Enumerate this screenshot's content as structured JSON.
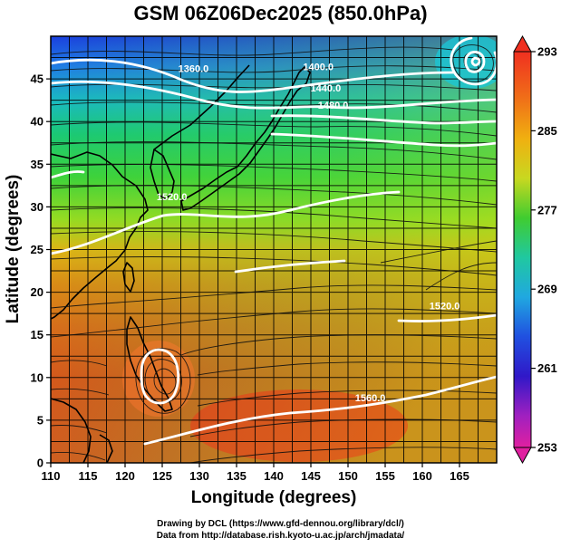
{
  "title": "GSM 06Z06Dec2025 (850.0hPa)",
  "map": {
    "xlabel": "Longitude (degrees)",
    "ylabel": "Latitude  (degrees)",
    "xticks": [
      "110",
      "115",
      "120",
      "125",
      "130",
      "135",
      "140",
      "145",
      "150",
      "155",
      "160",
      "165"
    ],
    "yticks": [
      "0",
      "5",
      "10",
      "15",
      "20",
      "25",
      "30",
      "35",
      "40",
      "45"
    ],
    "xlim": [
      110,
      170
    ],
    "ylim": [
      0,
      50
    ],
    "contour_labels": [
      {
        "text": "1360.0",
        "lon": 129.2,
        "lat": 45.8
      },
      {
        "text": "1400.0",
        "lon": 146.0,
        "lat": 46.0
      },
      {
        "text": "1440.0",
        "lon": 147.0,
        "lat": 43.5
      },
      {
        "text": "1480.0",
        "lon": 148.0,
        "lat": 41.5
      },
      {
        "text": "1520.0",
        "lon": 126.3,
        "lat": 30.8
      },
      {
        "text": "1560.0",
        "lon": 153.0,
        "lat": 7.2
      },
      {
        "text": "1520.0",
        "lon": 163.0,
        "lat": 18.0
      }
    ]
  },
  "colorbar": {
    "ticks": [
      "293",
      "285",
      "277",
      "269",
      "261",
      "253"
    ],
    "min": 253,
    "max": 293
  },
  "credits": {
    "line1": "Drawing by DCL (https://www.gfd-dennou.org/library/dcl/)",
    "line2": "Data from http://database.rish.kyoto-u.ac.jp/arch/jmadata/"
  }
}
